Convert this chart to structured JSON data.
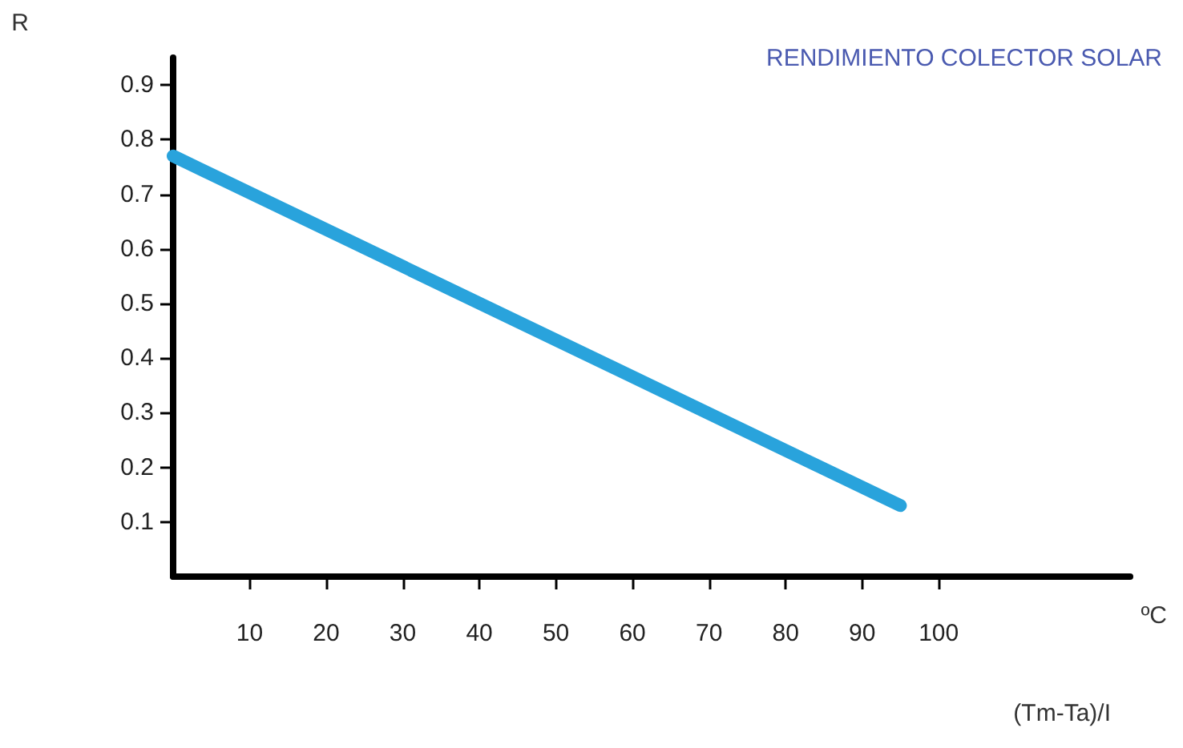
{
  "chart_data": {
    "type": "line",
    "title": "RENDIMIENTO COLECTOR SOLAR",
    "ylabel": "R",
    "xlabel": "(Tm-Ta)/I",
    "annotations": [
      "ºC"
    ],
    "x": [
      0,
      95
    ],
    "series": [
      {
        "color": "#29a3dc",
        "values": [
          0.77,
          0.13
        ]
      }
    ],
    "xlim": [
      0,
      125
    ],
    "xticks": [
      10,
      20,
      30,
      40,
      50,
      60,
      70,
      80,
      90,
      100
    ],
    "ylim": [
      0,
      0.95
    ],
    "yticks": [
      0.1,
      0.2,
      0.3,
      0.4,
      0.5,
      0.6,
      0.7,
      0.8,
      0.9
    ],
    "grid": false,
    "line_style": "solid"
  }
}
